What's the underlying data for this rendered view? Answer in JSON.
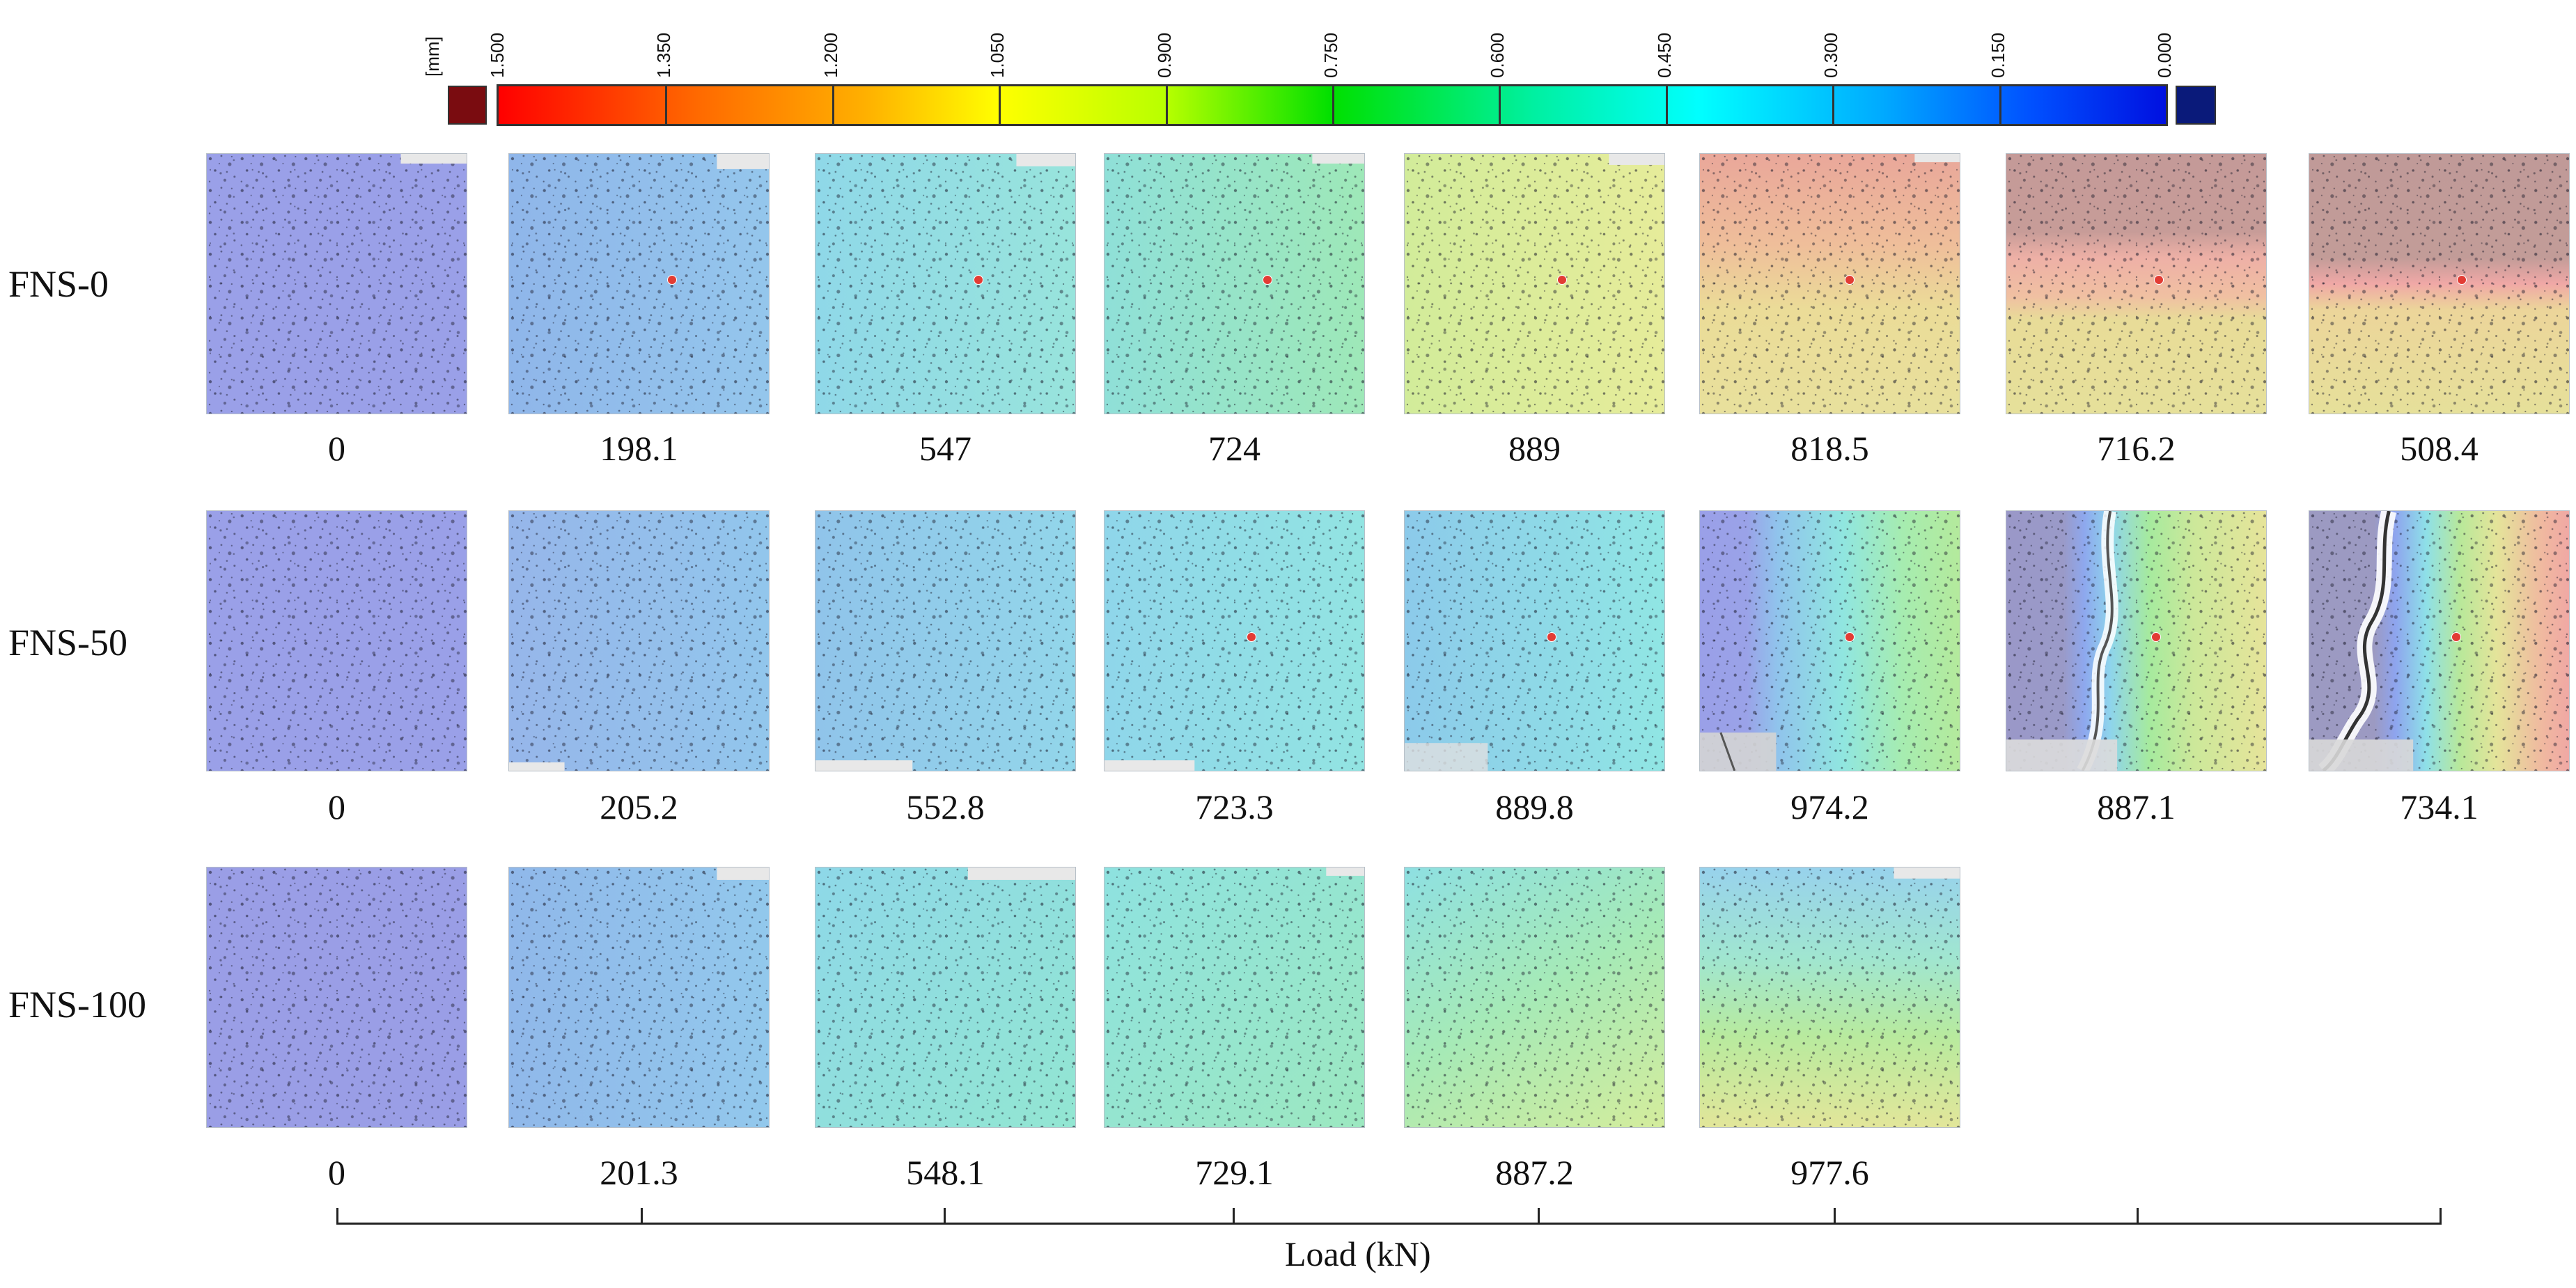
{
  "colorbar": {
    "unit": "[mm]",
    "labels": [
      "1.500",
      "1.350",
      "1.200",
      "1.050",
      "0.900",
      "0.750",
      "0.600",
      "0.450",
      "0.300",
      "0.150",
      "0.000"
    ],
    "over_color": "#7a0c10",
    "under_color": "#0a1a7a"
  },
  "rows": [
    {
      "label": "FNS-0",
      "loads": [
        "0",
        "198.1",
        "547",
        "724",
        "889",
        "818.5",
        "716.2",
        "508.4"
      ]
    },
    {
      "label": "FNS-50",
      "loads": [
        "0",
        "205.2",
        "552.8",
        "723.3",
        "889.8",
        "974.2",
        "887.1",
        "734.1"
      ]
    },
    {
      "label": "FNS-100",
      "loads": [
        "0",
        "201.3",
        "548.1",
        "729.1",
        "887.2",
        "977.6"
      ]
    }
  ],
  "axis": {
    "title": "Load (kN)"
  }
}
